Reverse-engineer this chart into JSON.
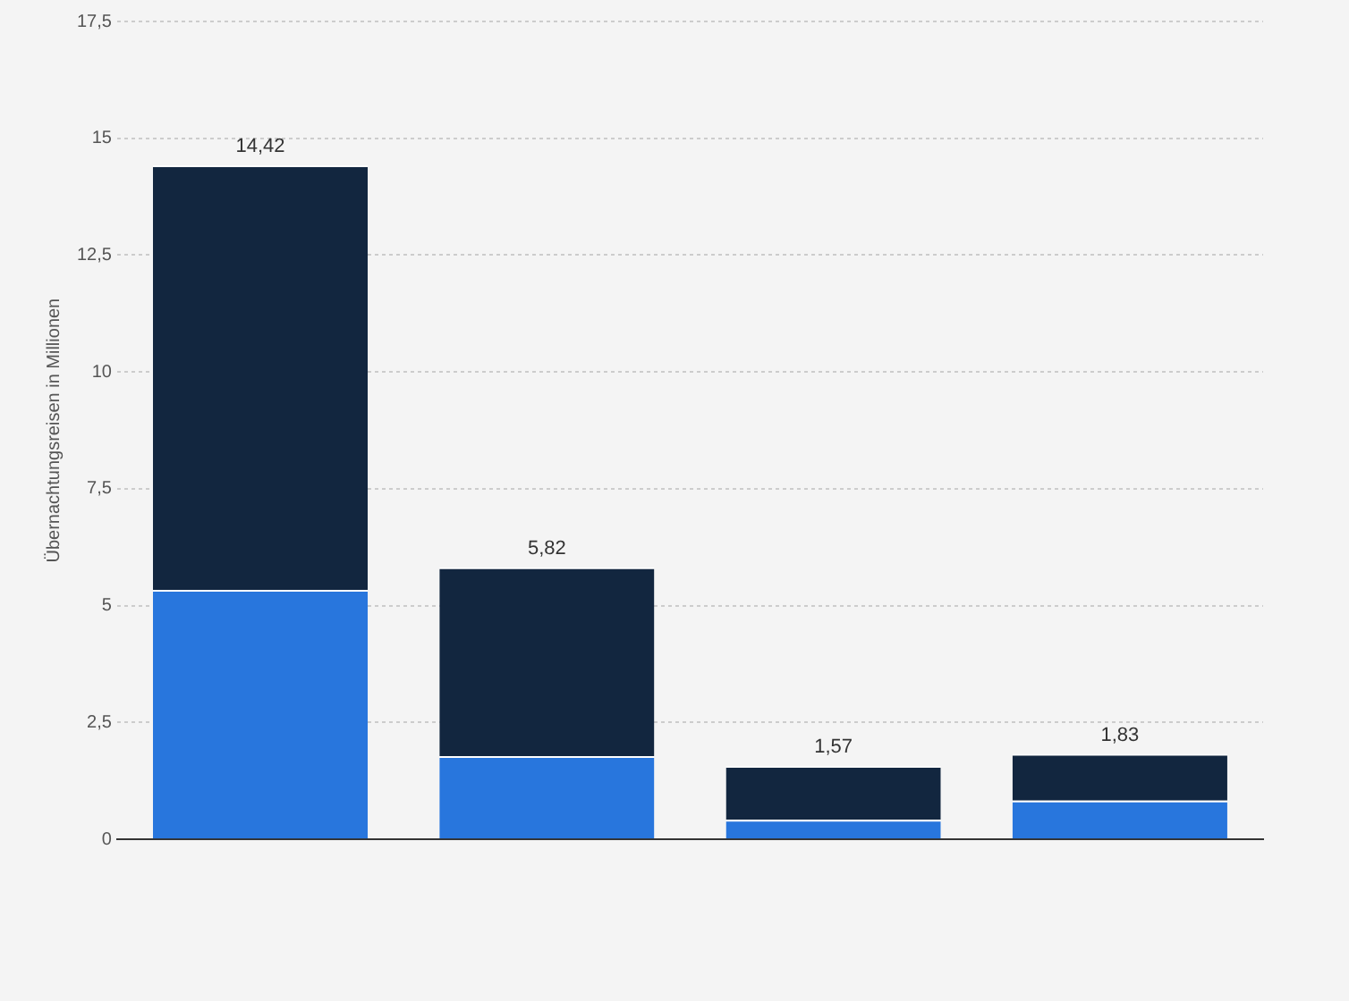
{
  "chart_data": {
    "type": "bar",
    "stacked": true,
    "ylabel": "Übernachtungsreisen in Millionen",
    "categories": [
      null,
      null,
      null,
      null
    ],
    "series": [
      {
        "color": "#2876dd",
        "values": [
          5.34,
          1.78,
          0.42,
          0.83
        ]
      },
      {
        "color": "#12263f",
        "values": [
          9.08,
          4.04,
          1.15,
          1.0
        ]
      }
    ],
    "totals": [
      "14,42",
      "5,82",
      "1,57",
      "1,83"
    ],
    "ylim": [
      0,
      17.5
    ],
    "yticks": [
      0,
      {
        "value": 2.5,
        "label": "2,5"
      },
      5,
      {
        "value": 7.5,
        "label": "7,5"
      },
      10,
      {
        "value": 12.5,
        "label": "12,5"
      },
      15,
      {
        "value": 17.5,
        "label": "17,5"
      }
    ],
    "grid": "y",
    "legend": false
  }
}
